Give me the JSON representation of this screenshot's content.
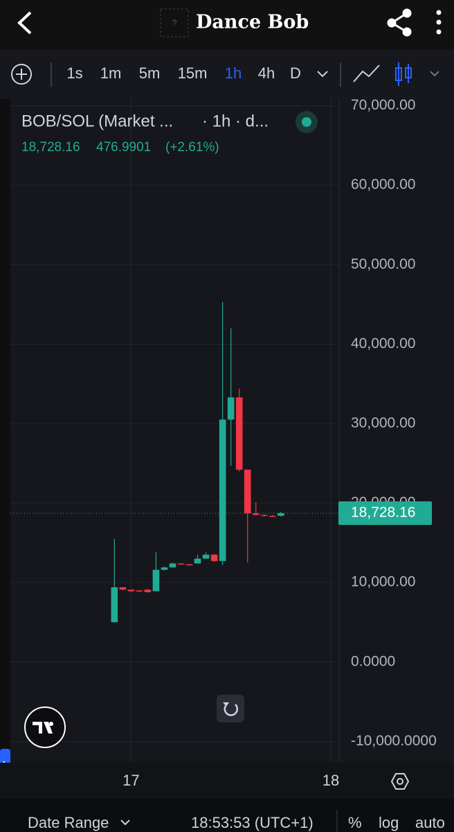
{
  "header": {
    "title": "Dance Bob",
    "placeholder": "?"
  },
  "toolbar": {
    "intervals": [
      {
        "label": "1s"
      },
      {
        "label": "1m"
      },
      {
        "label": "5m"
      },
      {
        "label": "15m"
      },
      {
        "label": "1h",
        "selected": true
      },
      {
        "label": "4h"
      },
      {
        "label": "D"
      }
    ]
  },
  "chart_data": {
    "type": "candlestick",
    "legend": {
      "title": "BOB/SOL (Market ...",
      "interval": "· 1h · d...",
      "values": [
        "18,728.16",
        "476.9901",
        "(+2.61%)"
      ]
    },
    "categories": [
      null,
      null,
      null,
      null,
      null,
      null,
      null,
      null,
      null,
      null,
      null,
      null,
      null,
      null,
      null,
      null,
      null,
      null,
      null,
      null,
      null
    ],
    "candles": {
      "open": [
        5000,
        9400,
        9100,
        9000,
        9100,
        8900,
        11600,
        11900,
        12400,
        12300,
        12400,
        13000,
        13500,
        12700,
        30500,
        33300,
        24200,
        18700,
        18500,
        18400,
        18400
      ],
      "high": [
        15500,
        9400,
        9100,
        9000,
        9200,
        13800,
        12000,
        12500,
        12400,
        12300,
        13500,
        13800,
        13600,
        45300,
        42000,
        34400,
        24200,
        20100,
        18600,
        18500,
        18900
      ],
      "low": [
        5000,
        9000,
        8800,
        8800,
        8700,
        8900,
        11500,
        11900,
        12200,
        12100,
        12400,
        13000,
        12600,
        12200,
        24700,
        24000,
        12500,
        18400,
        18300,
        18300,
        18300
      ],
      "close": [
        9400,
        9100,
        8900,
        8900,
        8800,
        11600,
        11900,
        12400,
        12300,
        12200,
        13000,
        13500,
        12700,
        30500,
        33300,
        24200,
        18700,
        18500,
        18400,
        18300,
        18728.16
      ]
    },
    "up_color": "#22ab94",
    "down_color": "#f23645",
    "last_price": {
      "value": 18728.16,
      "label": "18,728.16"
    },
    "xlim": [
      -12.5,
      27
    ],
    "xticks": [
      {
        "value": 2,
        "label": "17"
      },
      {
        "value": 26,
        "label": "18"
      }
    ],
    "ylim": [
      -12500,
      70400
    ],
    "yticks": [
      {
        "value": -10000,
        "label": "-10,000.0000"
      },
      {
        "value": 0,
        "label": "0.0000"
      },
      {
        "value": 10000,
        "label": "10,000.00"
      },
      {
        "value": 20000,
        "label": "20,000.00"
      },
      {
        "value": 30000,
        "label": "30,000.00"
      },
      {
        "value": 40000,
        "label": "40,000.00"
      },
      {
        "value": 50000,
        "label": "50,000.00"
      },
      {
        "value": 60000,
        "label": "60,000.00"
      },
      {
        "value": 70000,
        "label": "70,000.00"
      }
    ],
    "grid": true
  },
  "footer": {
    "date_range": "Date Range",
    "time": "18:53:53 (UTC+1)",
    "percent": "%",
    "log": "log",
    "auto": "auto"
  }
}
